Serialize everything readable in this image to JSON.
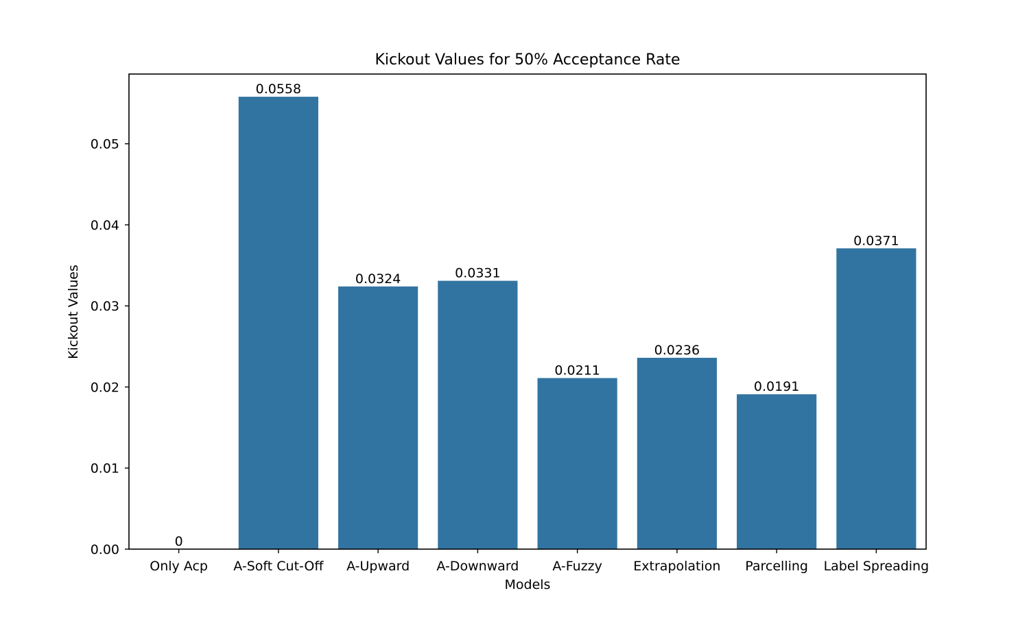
{
  "chart_data": {
    "type": "bar",
    "title": "Kickout Values for 50% Acceptance Rate",
    "xlabel": "Models",
    "ylabel": "Kickout Values",
    "categories": [
      "Only Acp",
      "A-Soft Cut-Off",
      "A-Upward",
      "A-Downward",
      "A-Fuzzy",
      "Extrapolation",
      "Parcelling",
      "Label Spreading"
    ],
    "values": [
      0,
      0.0558,
      0.0324,
      0.0331,
      0.0211,
      0.0236,
      0.0191,
      0.0371
    ],
    "value_labels": [
      "0",
      "0.0558",
      "0.0324",
      "0.0331",
      "0.0211",
      "0.0236",
      "0.0191",
      "0.0371"
    ],
    "ylim": [
      0,
      0.0586
    ],
    "yticks": [
      0,
      0.01,
      0.02,
      0.03,
      0.04,
      0.05
    ],
    "ytick_labels": [
      "0.00",
      "0.01",
      "0.02",
      "0.03",
      "0.04",
      "0.05"
    ],
    "grid": false,
    "legend": "none",
    "bar_color": "#3274a1"
  }
}
